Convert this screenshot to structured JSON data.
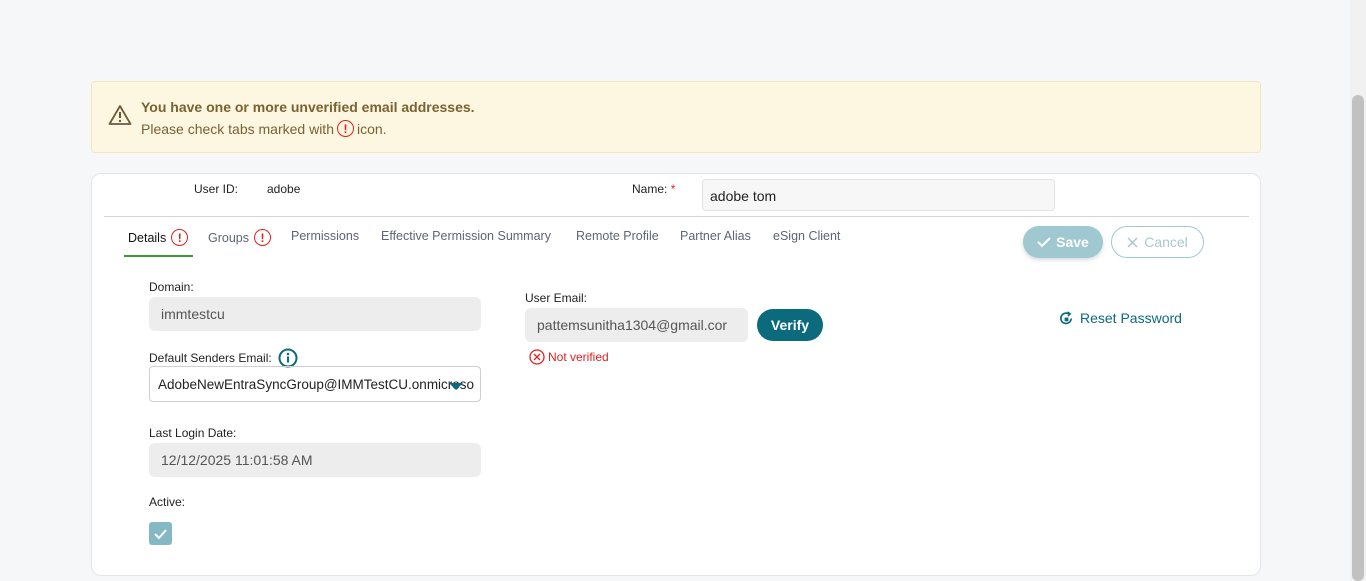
{
  "banner": {
    "title": "You have one or more unverified email addresses.",
    "message_before": "Please check tabs marked with",
    "message_after": "icon.",
    "icon": "warning-triangle-icon"
  },
  "header": {
    "user_id_label": "User ID:",
    "user_id_value": "adobe",
    "name_label": "Name:",
    "required_mark": "*",
    "name_value": "adobe tom"
  },
  "tabs": [
    {
      "label": "Details",
      "active": true,
      "warning": true
    },
    {
      "label": "Groups",
      "warning": true
    },
    {
      "label": "Permissions"
    },
    {
      "label": "Effective Permission Summary"
    },
    {
      "label": "Remote Profile"
    },
    {
      "label": "Partner Alias"
    },
    {
      "label": "eSign Client"
    }
  ],
  "actions": {
    "save": "Save",
    "cancel": "Cancel"
  },
  "details": {
    "domain_label": "Domain:",
    "domain_value": "immtestcu",
    "default_senders_label": "Default Senders Email:",
    "default_senders_value": "AdobeNewEntraSyncGroup@IMMTestCU.onmicroso",
    "last_login_label": "Last Login Date:",
    "last_login_value": "12/12/2025 11:01:58 AM",
    "active_label": "Active:",
    "active_checked": true,
    "user_email_label": "User Email:",
    "user_email_value": "pattemsunitha1304@gmail.cor",
    "verify": "Verify",
    "not_verified": "Not verified",
    "reset_password": "Reset Password"
  },
  "colors": {
    "accent": "#0c6a7d",
    "error": "#e02020",
    "tab_active": "#3a9a33",
    "banner_bg": "#fdf6e1"
  }
}
